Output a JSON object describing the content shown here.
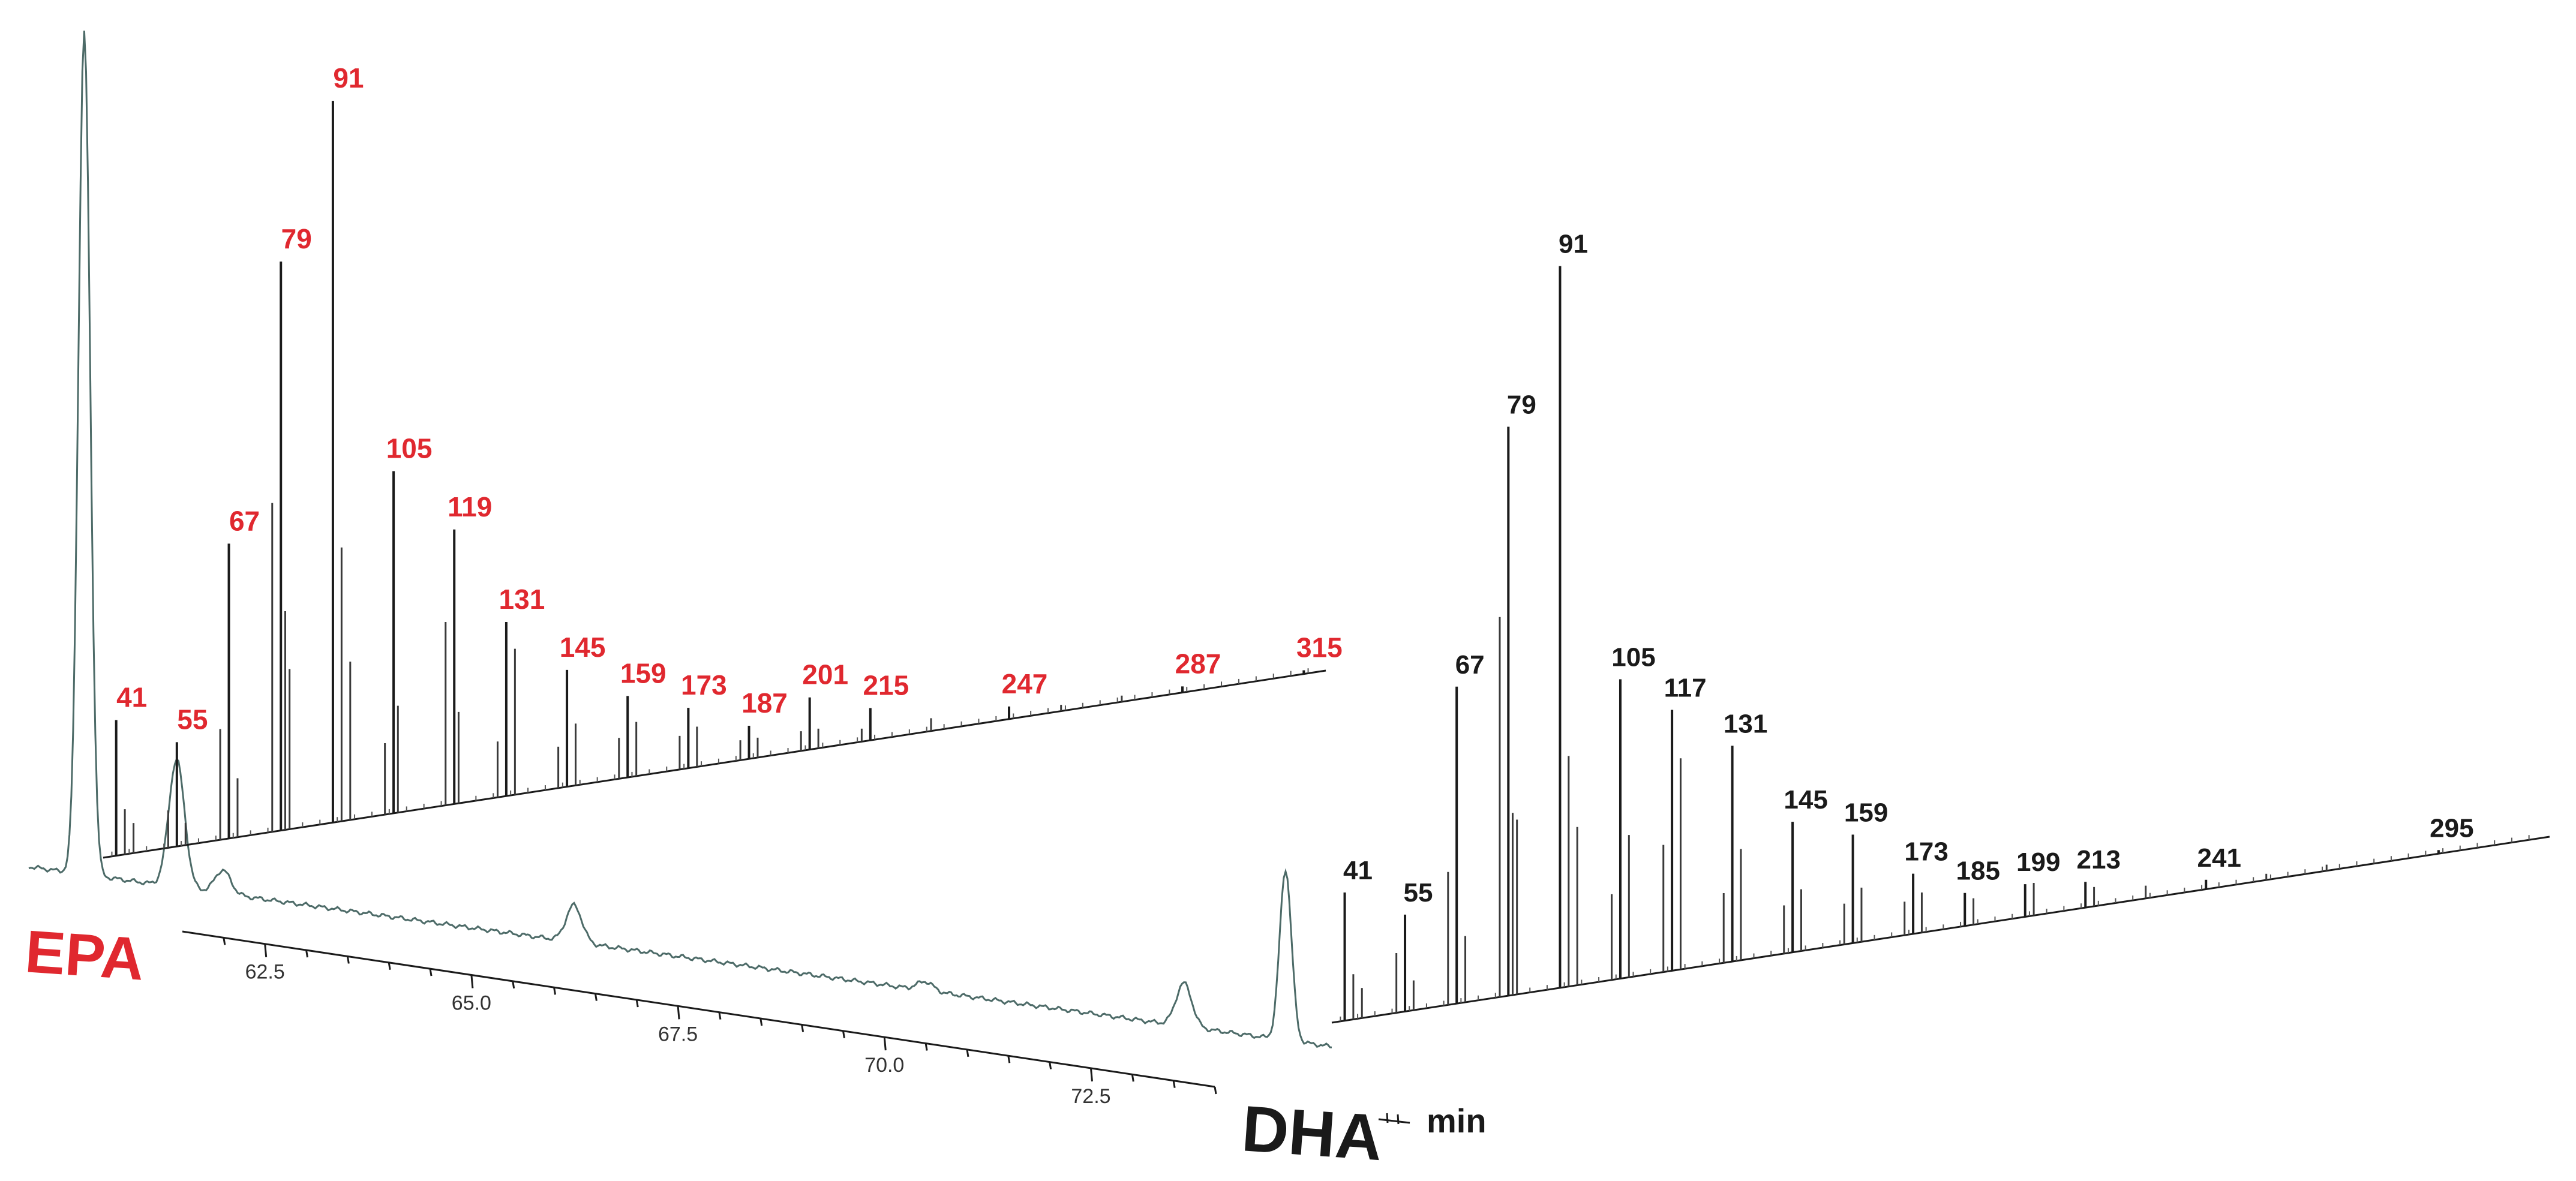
{
  "chart_data": [
    {
      "type": "line",
      "title": "",
      "xlabel": "min",
      "ylabel": "",
      "x_ticks": [
        "62.5",
        "65.0",
        "67.5",
        "70.0",
        "72.5"
      ],
      "xlim": [
        61.5,
        74.0
      ],
      "grid": false,
      "legend": "none",
      "color": "#4d6b68",
      "peaks": [
        {
          "x": 60.9,
          "height": 1.0,
          "label": "EPA"
        },
        {
          "x": 61.9,
          "height": 0.16
        },
        {
          "x": 62.4,
          "height": 0.03
        },
        {
          "x": 66.2,
          "height": 0.06
        },
        {
          "x": 70.0,
          "height": 0.02
        },
        {
          "x": 72.8,
          "height": 0.13
        },
        {
          "x": 73.9,
          "height": 0.6,
          "label": "DHA"
        }
      ]
    },
    {
      "type": "bar",
      "name": "EPA",
      "color": "#e0282f",
      "xlim": [
        38,
        318
      ],
      "peak_labels": [
        "41",
        "55",
        "67",
        "79",
        "91",
        "105",
        "119",
        "131",
        "145",
        "159",
        "173",
        "187",
        "201",
        "215",
        "247",
        "287",
        "315"
      ],
      "labeled_peaks": [
        {
          "mz": 41,
          "intensity": 18
        },
        {
          "mz": 55,
          "intensity": 14
        },
        {
          "mz": 67,
          "intensity": 40
        },
        {
          "mz": 79,
          "intensity": 78
        },
        {
          "mz": 91,
          "intensity": 100
        },
        {
          "mz": 105,
          "intensity": 48
        },
        {
          "mz": 119,
          "intensity": 39
        },
        {
          "mz": 131,
          "intensity": 25
        },
        {
          "mz": 145,
          "intensity": 17
        },
        {
          "mz": 159,
          "intensity": 12
        },
        {
          "mz": 173,
          "intensity": 9
        },
        {
          "mz": 187,
          "intensity": 5
        },
        {
          "mz": 201,
          "intensity": 8
        },
        {
          "mz": 215,
          "intensity": 5
        },
        {
          "mz": 247,
          "intensity": 2
        },
        {
          "mz": 287,
          "intensity": 1
        },
        {
          "mz": 315,
          "intensity": 0.5
        }
      ],
      "minor_peaks": [
        {
          "mz": 43,
          "intensity": 6
        },
        {
          "mz": 45,
          "intensity": 4
        },
        {
          "mz": 53,
          "intensity": 5
        },
        {
          "mz": 57,
          "intensity": 3
        },
        {
          "mz": 65,
          "intensity": 15
        },
        {
          "mz": 69,
          "intensity": 8
        },
        {
          "mz": 77,
          "intensity": 45
        },
        {
          "mz": 80,
          "intensity": 30
        },
        {
          "mz": 81,
          "intensity": 22
        },
        {
          "mz": 93,
          "intensity": 38
        },
        {
          "mz": 95,
          "intensity": 22
        },
        {
          "mz": 103,
          "intensity": 10
        },
        {
          "mz": 106,
          "intensity": 15
        },
        {
          "mz": 117,
          "intensity": 26
        },
        {
          "mz": 120,
          "intensity": 13
        },
        {
          "mz": 129,
          "intensity": 8
        },
        {
          "mz": 133,
          "intensity": 21
        },
        {
          "mz": 143,
          "intensity": 6
        },
        {
          "mz": 147,
          "intensity": 9
        },
        {
          "mz": 157,
          "intensity": 6
        },
        {
          "mz": 161,
          "intensity": 8
        },
        {
          "mz": 171,
          "intensity": 5
        },
        {
          "mz": 175,
          "intensity": 6
        },
        {
          "mz": 185,
          "intensity": 3
        },
        {
          "mz": 189,
          "intensity": 3
        },
        {
          "mz": 199,
          "intensity": 3
        },
        {
          "mz": 203,
          "intensity": 3
        },
        {
          "mz": 213,
          "intensity": 2
        },
        {
          "mz": 229,
          "intensity": 2
        },
        {
          "mz": 259,
          "intensity": 1
        },
        {
          "mz": 273,
          "intensity": 1
        }
      ]
    },
    {
      "type": "bar",
      "name": "DHA",
      "color": "#1a1a1a",
      "xlim": [
        38,
        318
      ],
      "peak_labels": [
        "41",
        "55",
        "67",
        "79",
        "91",
        "105",
        "117",
        "131",
        "145",
        "159",
        "173",
        "185",
        "199",
        "213",
        "241",
        "295"
      ],
      "labeled_peaks": [
        {
          "mz": 41,
          "intensity": 17
        },
        {
          "mz": 55,
          "intensity": 13
        },
        {
          "mz": 67,
          "intensity": 43
        },
        {
          "mz": 79,
          "intensity": 78
        },
        {
          "mz": 91,
          "intensity": 100
        },
        {
          "mz": 105,
          "intensity": 42
        },
        {
          "mz": 117,
          "intensity": 37
        },
        {
          "mz": 131,
          "intensity": 31
        },
        {
          "mz": 145,
          "intensity": 19
        },
        {
          "mz": 159,
          "intensity": 16
        },
        {
          "mz": 173,
          "intensity": 9
        },
        {
          "mz": 185,
          "intensity": 5
        },
        {
          "mz": 199,
          "intensity": 5
        },
        {
          "mz": 213,
          "intensity": 4
        },
        {
          "mz": 241,
          "intensity": 1.5
        },
        {
          "mz": 295,
          "intensity": 0.5
        }
      ],
      "minor_peaks": [
        {
          "mz": 43,
          "intensity": 6
        },
        {
          "mz": 45,
          "intensity": 4
        },
        {
          "mz": 53,
          "intensity": 8
        },
        {
          "mz": 57,
          "intensity": 4
        },
        {
          "mz": 65,
          "intensity": 18
        },
        {
          "mz": 69,
          "intensity": 9
        },
        {
          "mz": 77,
          "intensity": 52
        },
        {
          "mz": 80,
          "intensity": 25
        },
        {
          "mz": 81,
          "intensity": 24
        },
        {
          "mz": 93,
          "intensity": 32
        },
        {
          "mz": 95,
          "intensity": 22
        },
        {
          "mz": 103,
          "intensity": 12
        },
        {
          "mz": 107,
          "intensity": 20
        },
        {
          "mz": 115,
          "intensity": 18
        },
        {
          "mz": 119,
          "intensity": 30
        },
        {
          "mz": 129,
          "intensity": 10
        },
        {
          "mz": 133,
          "intensity": 16
        },
        {
          "mz": 143,
          "intensity": 7
        },
        {
          "mz": 147,
          "intensity": 9
        },
        {
          "mz": 157,
          "intensity": 6
        },
        {
          "mz": 161,
          "intensity": 8
        },
        {
          "mz": 171,
          "intensity": 5
        },
        {
          "mz": 175,
          "intensity": 6
        },
        {
          "mz": 187,
          "intensity": 4
        },
        {
          "mz": 201,
          "intensity": 5
        },
        {
          "mz": 215,
          "intensity": 3
        },
        {
          "mz": 227,
          "intensity": 2
        },
        {
          "mz": 255,
          "intensity": 1
        },
        {
          "mz": 269,
          "intensity": 1
        }
      ]
    }
  ],
  "labels": {
    "epa": "EPA",
    "dha": "DHA",
    "time_unit": "min"
  },
  "colors": {
    "epa": "#e0282f",
    "dha_text": "#1a1a1a",
    "chromatogram": "#4d6b68",
    "axis": "#1a1a1a"
  }
}
